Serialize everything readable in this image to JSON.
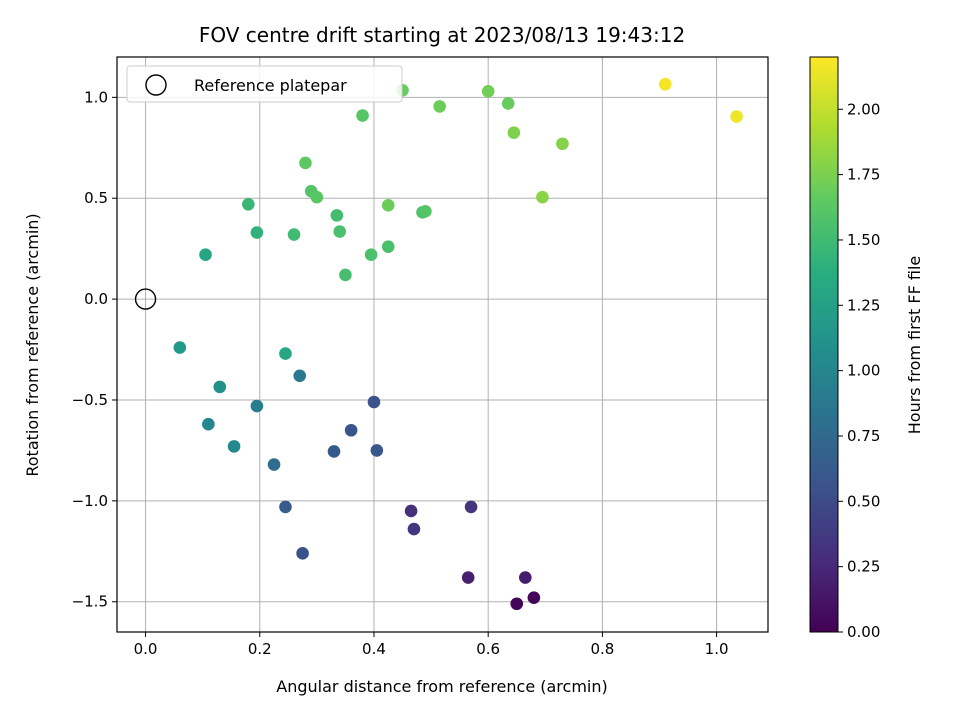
{
  "chart_data": {
    "type": "scatter",
    "title": "FOV centre drift starting at 2023/08/13 19:43:12",
    "xlabel": "Angular distance from reference (arcmin)",
    "ylabel": "Rotation from reference (arcmin)",
    "colorbar_label": "Hours from first FF file",
    "xlim": [
      -0.05,
      1.09
    ],
    "ylim": [
      -1.65,
      1.2
    ],
    "x_ticks": [
      0.0,
      0.2,
      0.4,
      0.6,
      0.8,
      1.0
    ],
    "x_tick_labels": [
      "0.0",
      "0.2",
      "0.4",
      "0.6",
      "0.8",
      "1.0"
    ],
    "y_ticks": [
      -1.5,
      -1.0,
      -0.5,
      0.0,
      0.5,
      1.0
    ],
    "y_tick_labels": [
      "−1.5",
      "−1.0",
      "−0.5",
      "0.0",
      "0.5",
      "1.0"
    ],
    "colorbar_range": [
      0.0,
      2.2
    ],
    "colorbar_ticks": [
      0.0,
      0.25,
      0.5,
      0.75,
      1.0,
      1.25,
      1.5,
      1.75,
      2.0
    ],
    "colorbar_tick_labels": [
      "0.00",
      "0.25",
      "0.50",
      "0.75",
      "1.00",
      "1.25",
      "1.50",
      "1.75",
      "2.00"
    ],
    "colormap": "viridis",
    "grid": true,
    "legend": {
      "label": "Reference platepar",
      "placement": "top-left"
    },
    "reference_point": {
      "x": 0.0,
      "y": 0.0
    },
    "points": [
      {
        "x": 0.65,
        "y": -1.51,
        "t": 0.02
      },
      {
        "x": 0.68,
        "y": -1.48,
        "t": 0.03
      },
      {
        "x": 0.665,
        "y": -1.38,
        "t": 0.18
      },
      {
        "x": 0.565,
        "y": -1.38,
        "t": 0.2
      },
      {
        "x": 0.465,
        "y": -1.05,
        "t": 0.3
      },
      {
        "x": 0.57,
        "y": -1.03,
        "t": 0.33
      },
      {
        "x": 0.47,
        "y": -1.14,
        "t": 0.35
      },
      {
        "x": 0.4,
        "y": -0.51,
        "t": 0.55
      },
      {
        "x": 0.36,
        "y": -0.65,
        "t": 0.58
      },
      {
        "x": 0.405,
        "y": -0.75,
        "t": 0.6
      },
      {
        "x": 0.33,
        "y": -0.755,
        "t": 0.62
      },
      {
        "x": 0.275,
        "y": -1.26,
        "t": 0.57
      },
      {
        "x": 0.245,
        "y": -1.03,
        "t": 0.63
      },
      {
        "x": 0.225,
        "y": -0.82,
        "t": 0.77
      },
      {
        "x": 0.27,
        "y": -0.38,
        "t": 0.88
      },
      {
        "x": 0.195,
        "y": -0.53,
        "t": 0.92
      },
      {
        "x": 0.155,
        "y": -0.73,
        "t": 1.02
      },
      {
        "x": 0.11,
        "y": -0.62,
        "t": 1.0
      },
      {
        "x": 0.13,
        "y": -0.435,
        "t": 1.1
      },
      {
        "x": 0.06,
        "y": -0.24,
        "t": 1.18
      },
      {
        "x": 0.245,
        "y": -0.27,
        "t": 1.3
      },
      {
        "x": 0.105,
        "y": 0.22,
        "t": 1.28
      },
      {
        "x": 0.195,
        "y": 0.33,
        "t": 1.42
      },
      {
        "x": 0.18,
        "y": 0.47,
        "t": 1.46
      },
      {
        "x": 0.26,
        "y": 0.32,
        "t": 1.5
      },
      {
        "x": 0.35,
        "y": 0.12,
        "t": 1.53
      },
      {
        "x": 0.34,
        "y": 0.335,
        "t": 1.55
      },
      {
        "x": 0.335,
        "y": 0.415,
        "t": 1.52
      },
      {
        "x": 0.395,
        "y": 0.22,
        "t": 1.56
      },
      {
        "x": 0.425,
        "y": 0.26,
        "t": 1.55
      },
      {
        "x": 0.29,
        "y": 0.535,
        "t": 1.6
      },
      {
        "x": 0.3,
        "y": 0.505,
        "t": 1.62
      },
      {
        "x": 0.28,
        "y": 0.675,
        "t": 1.64
      },
      {
        "x": 0.425,
        "y": 0.465,
        "t": 1.7
      },
      {
        "x": 0.485,
        "y": 0.43,
        "t": 1.58
      },
      {
        "x": 0.49,
        "y": 0.435,
        "t": 1.6
      },
      {
        "x": 0.38,
        "y": 0.91,
        "t": 1.61
      },
      {
        "x": 0.45,
        "y": 1.035,
        "t": 1.68
      },
      {
        "x": 0.515,
        "y": 0.955,
        "t": 1.7
      },
      {
        "x": 0.6,
        "y": 1.03,
        "t": 1.72
      },
      {
        "x": 0.635,
        "y": 0.97,
        "t": 1.68
      },
      {
        "x": 0.645,
        "y": 0.825,
        "t": 1.76
      },
      {
        "x": 0.695,
        "y": 0.505,
        "t": 1.8
      },
      {
        "x": 0.73,
        "y": 0.77,
        "t": 1.78
      },
      {
        "x": 0.91,
        "y": 1.065,
        "t": 2.17
      },
      {
        "x": 1.035,
        "y": 0.905,
        "t": 2.15
      }
    ]
  }
}
